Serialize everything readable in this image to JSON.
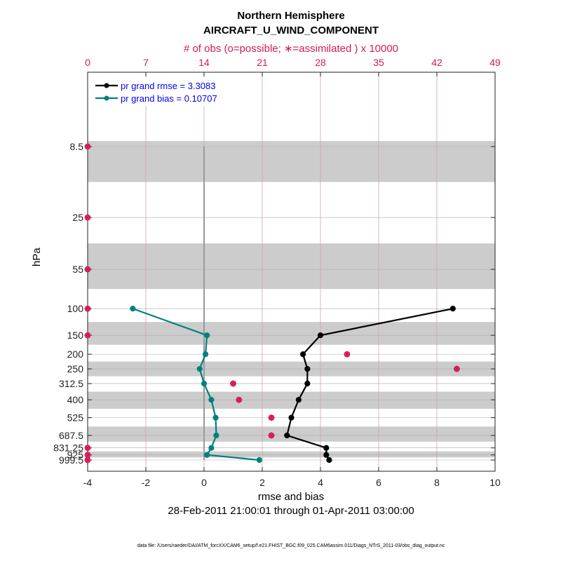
{
  "chart_data": {
    "type": "line",
    "title": "Northern Hemisphere",
    "subtitle": "AIRCRAFT_U_WIND_COMPONENT",
    "top_axis_label": "# of obs (o=possible; ∗=assimilated ) x 10000",
    "xlabel": "rmse and bias",
    "ylabel": "hPa",
    "date_range": "28-Feb-2011 21:00:01 through 01-Apr-2011 03:00:00",
    "data_file": "data file: /Users/raeder/DAI/ATM_forcXX/CAM6_setup/f.e21.FHIST_BGC.f09_025.CAM6assim.011/Diags_NTrS_2011-03/obs_diag_output.nc",
    "xlim": [
      -4,
      10
    ],
    "x_ticks": [
      "-4",
      "-2",
      "0",
      "2",
      "4",
      "6",
      "8",
      "10"
    ],
    "top_xlim": [
      0,
      49
    ],
    "top_ticks": [
      "0",
      "7",
      "14",
      "21",
      "28",
      "35",
      "42",
      "49"
    ],
    "levels": [
      8.5,
      25,
      55,
      100,
      150,
      200,
      250,
      312.5,
      400,
      525,
      687.5,
      831.25,
      925,
      999.5
    ],
    "level_labels": [
      "8.5",
      "25",
      "55",
      "100",
      "150",
      "200",
      "250",
      "312.5",
      "400",
      "525",
      "687.5",
      "831.25",
      "925",
      "999.5"
    ],
    "series": [
      {
        "name": "pr grand rmse = 3.3083",
        "color": "#000000",
        "levels": [
          100,
          150,
          200,
          250,
          312.5,
          400,
          525,
          687.5,
          831.25,
          925,
          999.5
        ],
        "values": [
          8.55,
          4.0,
          3.4,
          3.55,
          3.55,
          3.25,
          3.0,
          2.85,
          4.2,
          4.2,
          4.3
        ]
      },
      {
        "name": "pr grand bias = 0.10707",
        "color": "#00807f",
        "levels": [
          100,
          150,
          200,
          250,
          312.5,
          400,
          525,
          687.5,
          831.25,
          925,
          999.5
        ],
        "values": [
          -2.45,
          0.1,
          0.05,
          -0.15,
          0.0,
          0.25,
          0.4,
          0.42,
          0.25,
          0.1,
          1.9
        ]
      }
    ],
    "obs_counts": {
      "color": "#d6185a",
      "scale": "x 10000",
      "levels": [
        8.5,
        25,
        55,
        100,
        150,
        200,
        250,
        312.5,
        400,
        525,
        687.5,
        831.25,
        925,
        999.5
      ],
      "possible": [
        0,
        0,
        0,
        0,
        0,
        31.2,
        44.4,
        17.5,
        18.2,
        22.1,
        22.1,
        0,
        0,
        0
      ],
      "assimilated": [
        0,
        0,
        0,
        0,
        0,
        31.2,
        44.4,
        17.5,
        18.2,
        22.1,
        22.1,
        0,
        0,
        0
      ]
    }
  }
}
